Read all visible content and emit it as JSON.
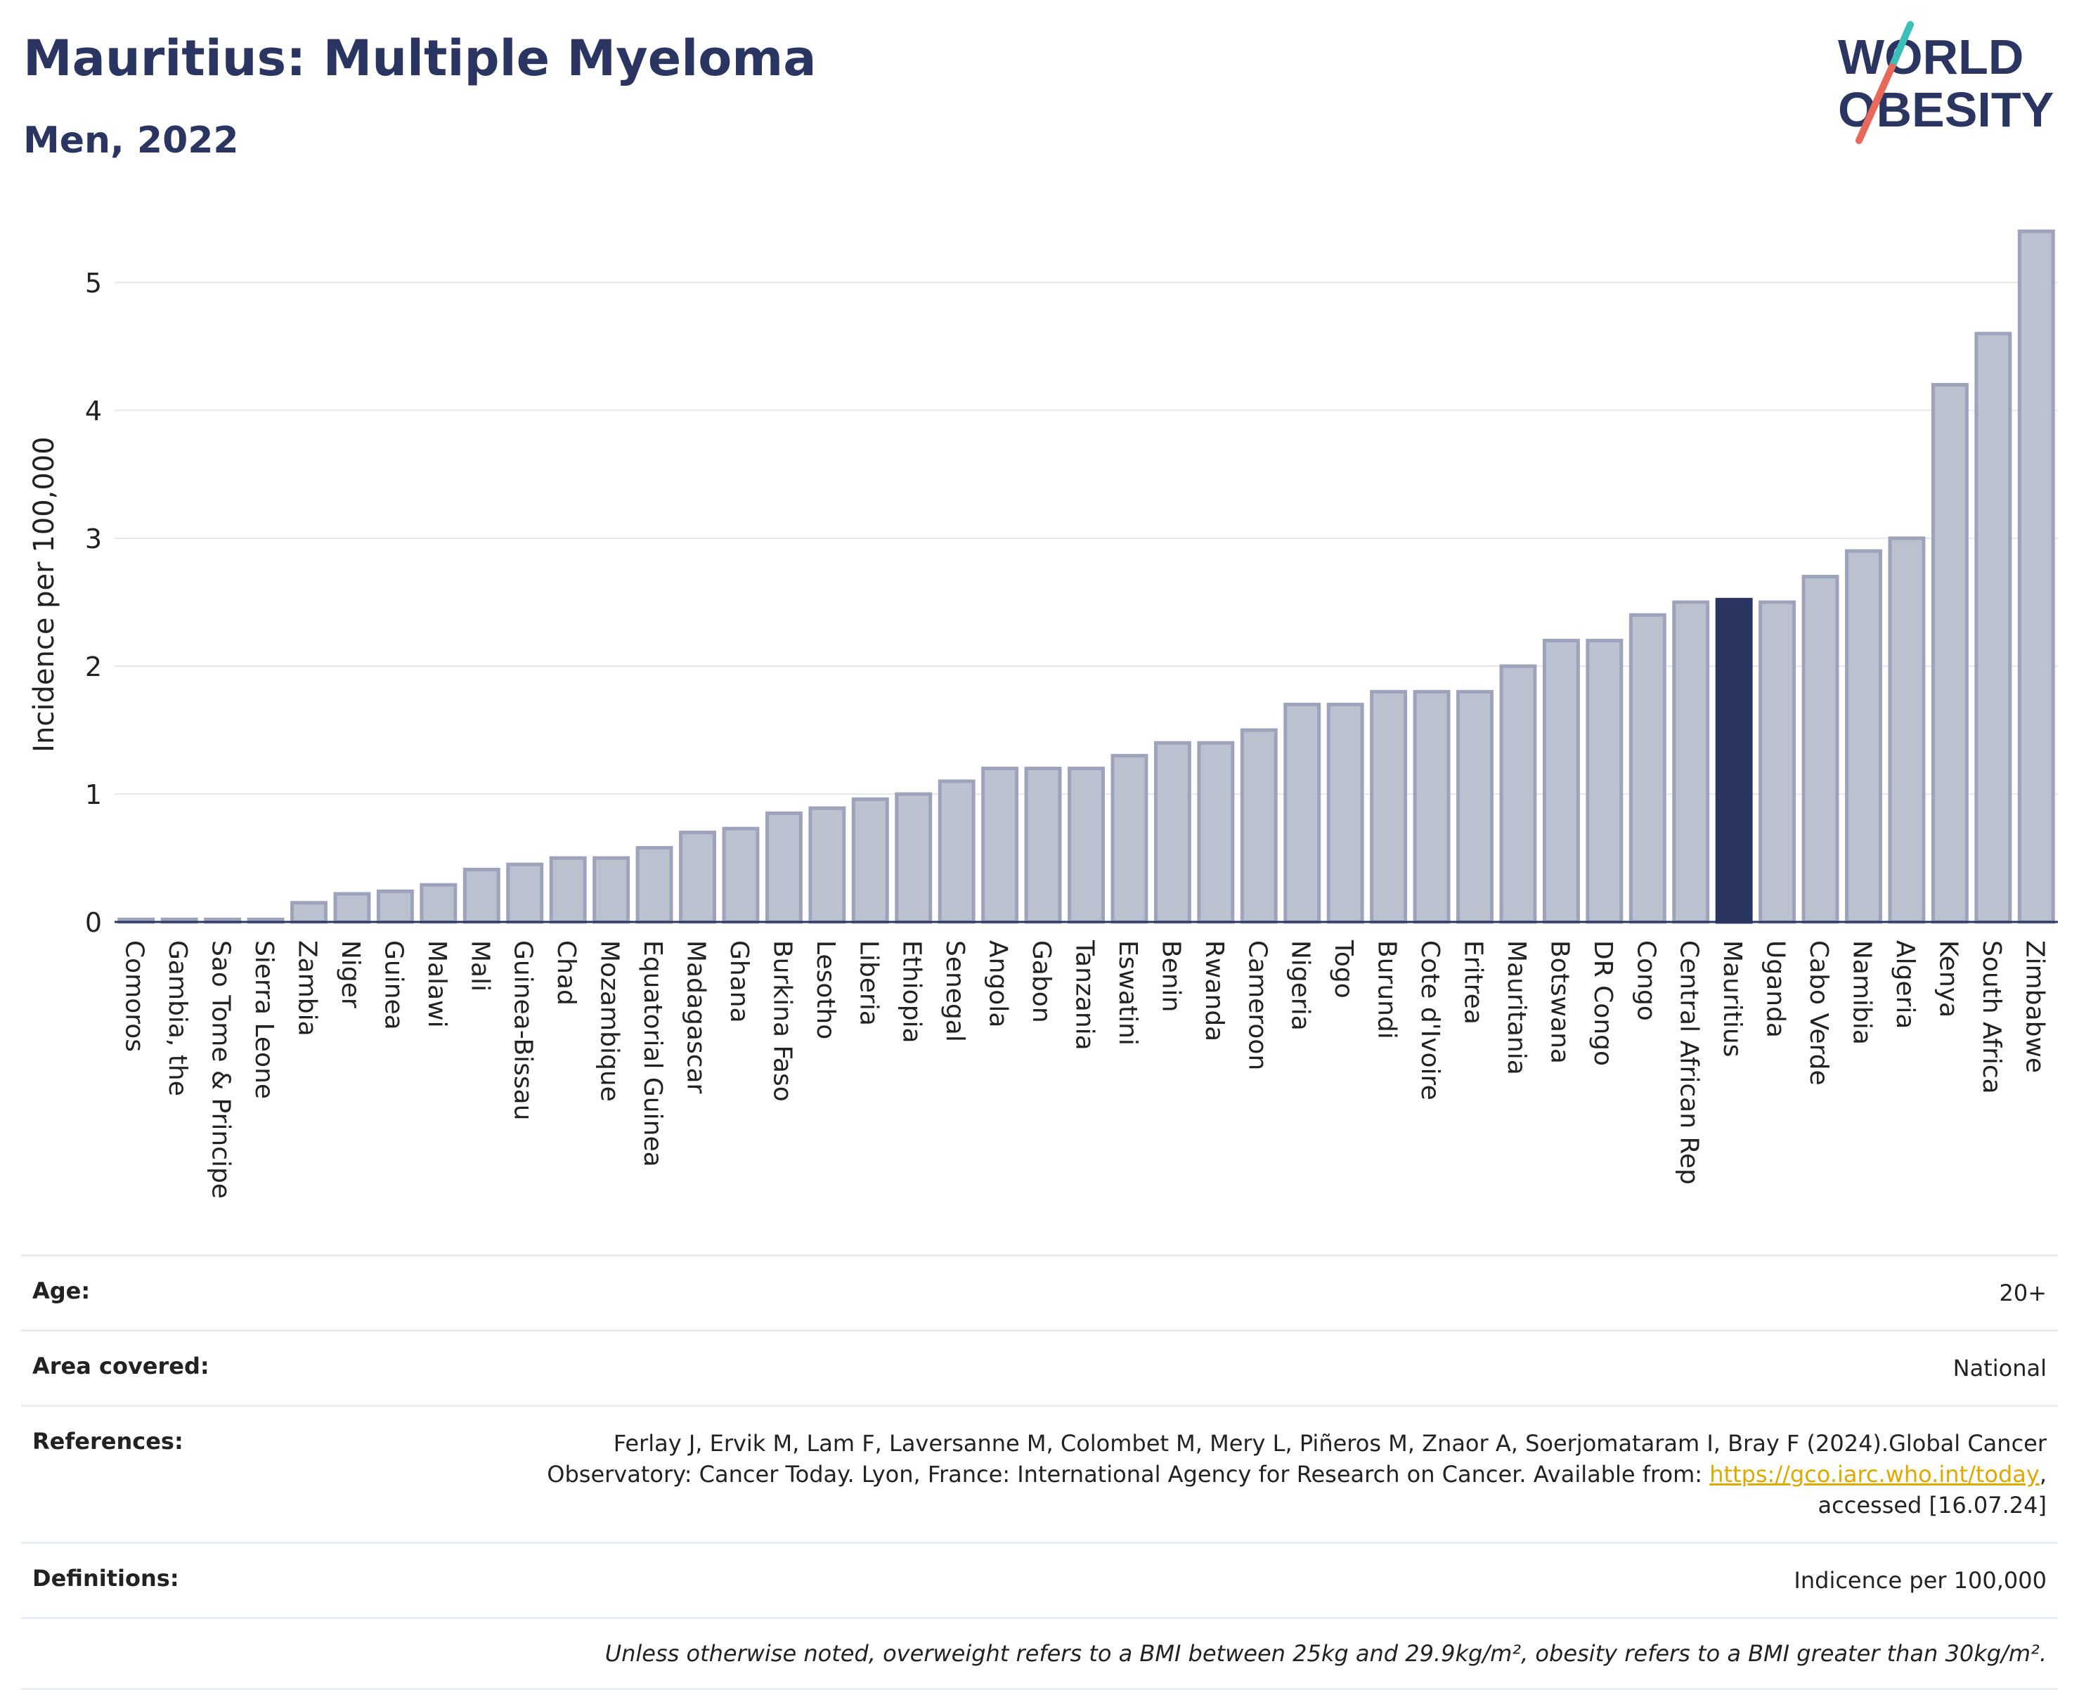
{
  "header": {
    "title": "Mauritius: Multiple Myeloma",
    "subtitle": "Men, 2022"
  },
  "logo": {
    "line1": "WORLD",
    "line2": "OBESITY",
    "colors": {
      "text": "#2b3561",
      "slash_top": "#3cbfb9",
      "slash_bottom": "#e8685a"
    }
  },
  "colors": {
    "bar_default": "#bcc1d0",
    "bar_border": "#9da3bb",
    "bar_highlight": "#2b3561",
    "grid": "#e5e8ee",
    "axis": "#2b3561"
  },
  "chart_data": {
    "type": "bar",
    "title": "Mauritius: Multiple Myeloma",
    "ylabel": "Incidence per 100,000",
    "xlabel": "",
    "ylim": [
      0,
      5.45
    ],
    "yticks": [
      0,
      1,
      2,
      3,
      4,
      5
    ],
    "grid": true,
    "highlight": "Mauritius",
    "categories": [
      "Comoros",
      "Gambia, the",
      "Sao Tome & Principe",
      "Sierra Leone",
      "Zambia",
      "Niger",
      "Guinea",
      "Malawi",
      "Mali",
      "Guinea-Bissau",
      "Chad",
      "Mozambique",
      "Equatorial Guinea",
      "Madagascar",
      "Ghana",
      "Burkina Faso",
      "Lesotho",
      "Liberia",
      "Ethiopia",
      "Senegal",
      "Angola",
      "Gabon",
      "Tanzania",
      "Eswatini",
      "Benin",
      "Rwanda",
      "Cameroon",
      "Nigeria",
      "Togo",
      "Burundi",
      "Cote d'Ivoire",
      "Eritrea",
      "Mauritania",
      "Botswana",
      "DR Congo",
      "Congo",
      "Central African Rep",
      "Mauritius",
      "Uganda",
      "Cabo Verde",
      "Namibia",
      "Algeria",
      "Kenya",
      "South Africa",
      "Zimbabwe"
    ],
    "values": [
      0.02,
      0.02,
      0.02,
      0.02,
      0.15,
      0.22,
      0.24,
      0.29,
      0.41,
      0.45,
      0.5,
      0.5,
      0.58,
      0.7,
      0.73,
      0.85,
      0.89,
      0.96,
      1.0,
      1.1,
      1.2,
      1.2,
      1.2,
      1.3,
      1.4,
      1.4,
      1.5,
      1.7,
      1.7,
      1.8,
      1.8,
      1.8,
      2.0,
      2.2,
      2.2,
      2.4,
      2.5,
      2.52,
      2.5,
      2.7,
      2.9,
      3.0,
      4.2,
      4.6,
      5.4
    ]
  },
  "info": {
    "age_label": "Age:",
    "age_value": "20+",
    "area_label": "Area covered:",
    "area_value": "National",
    "refs_label": "References:",
    "refs_line1": "Ferlay J, Ervik M, Lam F, Laversanne M, Colombet M, Mery L, Piñeros M, Znaor A, Soerjomataram I, Bray F (2024).Global Cancer",
    "refs_line2_pre": "Observatory: Cancer Today. Lyon, France: International Agency for Research on Cancer. Available from: ",
    "refs_link": "https://gco.iarc.who.int/today",
    "refs_line2_post": ",",
    "refs_line3": "accessed [16.07.24]",
    "defs_label": "Definitions:",
    "defs_value": "Indicence per 100,000",
    "note": "Unless otherwise noted, overweight refers to a BMI between 25kg and 29.9kg/m², obesity refers to a BMI greater than 30kg/m²."
  }
}
